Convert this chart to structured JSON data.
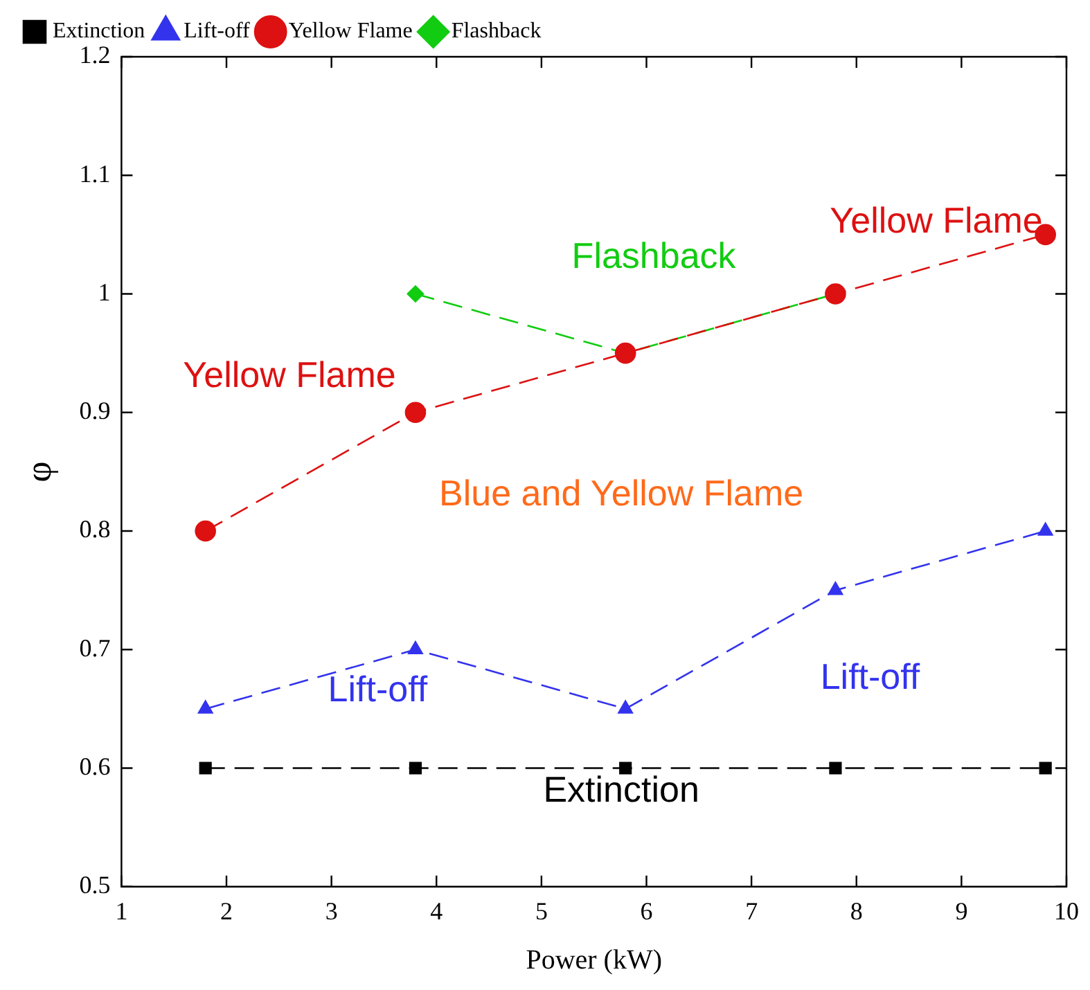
{
  "chart_data": {
    "type": "line",
    "xlabel": "Power (kW)",
    "ylabel": "φ",
    "xlim": [
      1,
      10
    ],
    "xticks": [
      1,
      2,
      3,
      4,
      5,
      6,
      7,
      8,
      9,
      10
    ],
    "ylim": [
      0.5,
      1.2
    ],
    "yticks": [
      0.5,
      0.6,
      0.7,
      0.8,
      0.9,
      1,
      1.1,
      1.2
    ],
    "grid": false,
    "legend": "top left",
    "line_style": "dashed",
    "series": [
      {
        "name": "Extinction",
        "color": "#000000",
        "marker": "square",
        "x": [
          1.8,
          3.8,
          5.8,
          7.8,
          9.8
        ],
        "values": [
          0.6,
          0.6,
          0.6,
          0.6,
          0.6
        ]
      },
      {
        "name": "Lift-off",
        "color": "#3333ee",
        "marker": "triangle",
        "x": [
          1.8,
          3.8,
          5.8,
          7.8,
          9.8
        ],
        "values": [
          0.65,
          0.7,
          0.65,
          0.75,
          0.8
        ]
      },
      {
        "name": "Yellow Flame",
        "color": "#dd1111",
        "marker": "circle",
        "x": [
          1.8,
          3.8,
          5.8,
          7.8,
          9.8
        ],
        "values": [
          0.8,
          0.9,
          0.95,
          1.0,
          1.05
        ]
      },
      {
        "name": "Flashback",
        "color": "#11cc11",
        "marker": "diamond",
        "x": [
          3.8,
          5.8,
          7.8
        ],
        "values": [
          1.0,
          0.95,
          1.0
        ]
      }
    ],
    "annotations": [
      "Yellow Flame",
      "Flashback",
      "Yellow Flame",
      "Blue and Yellow Flame",
      "Lift-off",
      "Lift-off",
      "Extinction"
    ]
  }
}
